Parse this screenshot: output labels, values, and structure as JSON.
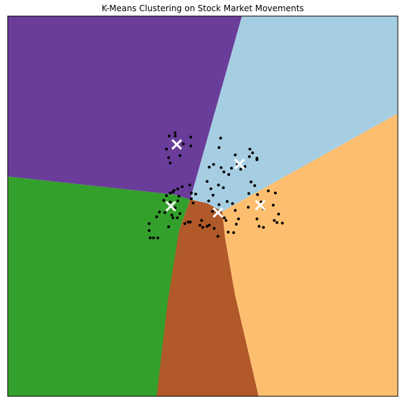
{
  "chart_data": {
    "type": "scatter",
    "title": "K-Means Clustering on Stock Market Movements",
    "xlabel": "",
    "ylabel": "",
    "grid": false,
    "axis_ticks": false,
    "xlim": [
      -3.6,
      3.6
    ],
    "ylim": [
      -3.6,
      3.6
    ],
    "region_colors": {
      "purple": "#6a3d9a",
      "light_blue": "#a6cee3",
      "orange": "#fdbf6f",
      "brown": "#b15928",
      "green": "#33a02c"
    },
    "marker_color": "#000000",
    "centroid_color": "#ffffff",
    "centroids": [
      {
        "x": -0.48,
        "y": 1.17
      },
      {
        "x": 0.68,
        "y": 0.8
      },
      {
        "x": 1.06,
        "y": 0.02
      },
      {
        "x": 0.28,
        "y": -0.12
      },
      {
        "x": -0.59,
        "y": -0.0
      }
    ],
    "points": [
      {
        "x": -0.62,
        "y": 1.33
      },
      {
        "x": -0.51,
        "y": 1.39
      },
      {
        "x": -0.51,
        "y": 1.33
      },
      {
        "x": -0.36,
        "y": 1.18
      },
      {
        "x": -0.22,
        "y": 1.31
      },
      {
        "x": -0.22,
        "y": 1.14
      },
      {
        "x": -0.67,
        "y": 1.08
      },
      {
        "x": -0.42,
        "y": 0.96
      },
      {
        "x": -0.63,
        "y": 0.92
      },
      {
        "x": -0.6,
        "y": 0.82
      },
      {
        "x": 0.33,
        "y": 1.29
      },
      {
        "x": 0.3,
        "y": 1.11
      },
      {
        "x": 0.6,
        "y": 0.97
      },
      {
        "x": 0.87,
        "y": 1.08
      },
      {
        "x": 0.92,
        "y": 1.01
      },
      {
        "x": 0.86,
        "y": 0.94
      },
      {
        "x": 1.0,
        "y": 0.91
      },
      {
        "x": 1.0,
        "y": 0.88
      },
      {
        "x": 0.64,
        "y": 0.79
      },
      {
        "x": 0.7,
        "y": 0.7
      },
      {
        "x": 0.78,
        "y": 0.75
      },
      {
        "x": 0.12,
        "y": 0.74
      },
      {
        "x": 0.2,
        "y": 0.79
      },
      {
        "x": 0.34,
        "y": 0.73
      },
      {
        "x": 0.48,
        "y": 0.6
      },
      {
        "x": 0.53,
        "y": 0.72
      },
      {
        "x": 0.39,
        "y": 0.65
      },
      {
        "x": 0.89,
        "y": 0.46
      },
      {
        "x": 0.96,
        "y": 0.39
      },
      {
        "x": 0.85,
        "y": 0.24
      },
      {
        "x": 1.21,
        "y": 0.29
      },
      {
        "x": 1.34,
        "y": 0.25
      },
      {
        "x": 1.01,
        "y": 0.22
      },
      {
        "x": 1.08,
        "y": 0.08
      },
      {
        "x": 1.12,
        "y": -0.05
      },
      {
        "x": 1.3,
        "y": 0.02
      },
      {
        "x": 1.0,
        "y": -0.24
      },
      {
        "x": 1.04,
        "y": -0.38
      },
      {
        "x": 1.12,
        "y": -0.4
      },
      {
        "x": 1.4,
        "y": -0.15
      },
      {
        "x": 1.32,
        "y": -0.27
      },
      {
        "x": 1.37,
        "y": -0.31
      },
      {
        "x": 1.47,
        "y": -0.32
      },
      {
        "x": 0.84,
        "y": -0.02
      },
      {
        "x": 0.08,
        "y": 0.47
      },
      {
        "x": 0.15,
        "y": 0.33
      },
      {
        "x": 0.19,
        "y": 0.21
      },
      {
        "x": 0.29,
        "y": 0.4
      },
      {
        "x": 0.38,
        "y": 0.35
      },
      {
        "x": 0.11,
        "y": 0.1
      },
      {
        "x": 0.18,
        "y": -0.1
      },
      {
        "x": 0.3,
        "y": 0.03
      },
      {
        "x": 0.4,
        "y": -0.22
      },
      {
        "x": 0.43,
        "y": -0.27
      },
      {
        "x": 0.45,
        "y": 0.09
      },
      {
        "x": 0.55,
        "y": 0.05
      },
      {
        "x": 0.6,
        "y": -0.08
      },
      {
        "x": 0.12,
        "y": -0.36
      },
      {
        "x": 0.08,
        "y": -0.38
      },
      {
        "x": 0.0,
        "y": -0.4
      },
      {
        "x": 0.21,
        "y": -0.42
      },
      {
        "x": 0.28,
        "y": -0.57
      },
      {
        "x": 0.47,
        "y": -0.49
      },
      {
        "x": 0.57,
        "y": -0.5
      },
      {
        "x": 0.62,
        "y": -0.34
      },
      {
        "x": 0.66,
        "y": -0.24
      },
      {
        "x": -0.02,
        "y": -0.27
      },
      {
        "x": -0.05,
        "y": -0.36
      },
      {
        "x": 0.28,
        "y": -0.13
      },
      {
        "x": 0.26,
        "y": -0.09
      },
      {
        "x": -0.24,
        "y": 0.4
      },
      {
        "x": -0.38,
        "y": 0.37
      },
      {
        "x": -0.46,
        "y": 0.33
      },
      {
        "x": -0.55,
        "y": 0.27
      },
      {
        "x": -0.6,
        "y": 0.25
      },
      {
        "x": -0.67,
        "y": 0.2
      },
      {
        "x": -0.53,
        "y": 0.3
      },
      {
        "x": -0.44,
        "y": 0.19
      },
      {
        "x": -0.46,
        "y": 0.1
      },
      {
        "x": -0.72,
        "y": 0.11
      },
      {
        "x": -0.6,
        "y": 0.08
      },
      {
        "x": -0.51,
        "y": -0.03
      },
      {
        "x": -0.42,
        "y": -0.14
      },
      {
        "x": -0.7,
        "y": -0.12
      },
      {
        "x": -0.8,
        "y": -0.11
      },
      {
        "x": -0.85,
        "y": -0.2
      },
      {
        "x": -0.57,
        "y": -0.17
      },
      {
        "x": -0.55,
        "y": -0.22
      },
      {
        "x": -0.47,
        "y": -0.22
      },
      {
        "x": -0.33,
        "y": -0.33
      },
      {
        "x": -0.23,
        "y": -0.3
      },
      {
        "x": -0.63,
        "y": -0.39
      },
      {
        "x": -0.99,
        "y": -0.33
      },
      {
        "x": -0.99,
        "y": -0.46
      },
      {
        "x": -0.97,
        "y": -0.6
      },
      {
        "x": -0.91,
        "y": -0.6
      },
      {
        "x": -0.83,
        "y": -0.6
      },
      {
        "x": -0.18,
        "y": 0.06
      },
      {
        "x": -0.21,
        "y": 0.25
      },
      {
        "x": -0.21,
        "y": 0.14
      },
      {
        "x": -0.13,
        "y": 0.23
      },
      {
        "x": -0.27,
        "y": -0.3
      }
    ]
  }
}
